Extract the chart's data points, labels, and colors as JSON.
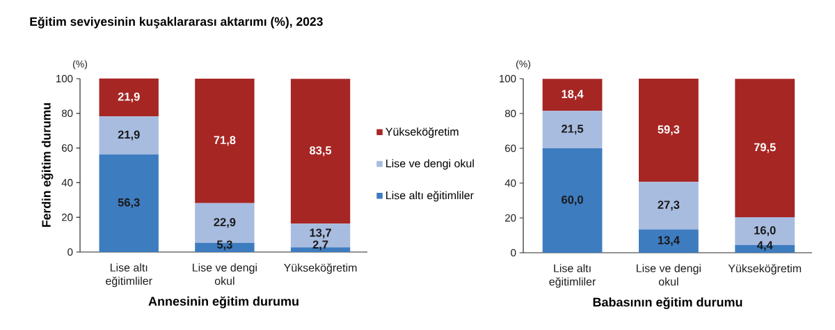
{
  "chart_data": [
    {
      "type": "bar",
      "title": "Eğitim seviyesinin kuşaklararası aktarımı (%), 2023",
      "xlabel": "Annesinin eğitim durumu",
      "ylabel": "Ferdin eğitim durumu",
      "annotations": [
        "(%)"
      ],
      "categories": [
        "Lise altı eğitimliler",
        "Lise ve dengi okul",
        "Yükseköğretim"
      ],
      "stacked": true,
      "series": [
        {
          "name": "Lise altı eğitimliler",
          "color": "#3e7cc0",
          "values": [
            56.3,
            5.3,
            2.7
          ],
          "value_labels": [
            "56,3",
            "5,3",
            "2,7"
          ]
        },
        {
          "name": "Lise ve dengi okul",
          "color": "#a8bce0",
          "values": [
            21.9,
            22.9,
            13.7
          ],
          "value_labels": [
            "21,9",
            "22,9",
            "13,7"
          ]
        },
        {
          "name": "Yükseköğretim",
          "color": "#a62624",
          "values": [
            21.9,
            71.8,
            83.5
          ],
          "value_labels": [
            "21,9",
            "71,8",
            "83,5"
          ]
        }
      ],
      "ylim": [
        0,
        100
      ],
      "yticks": [
        0,
        20,
        40,
        60,
        80,
        100
      ],
      "legend": "right"
    },
    {
      "type": "bar",
      "xlabel": "Babasının eğitim durumu",
      "annotations": [
        "(%)"
      ],
      "categories": [
        "Lise altı eğitimliler",
        "Lise ve dengi okul",
        "Yükseköğretim"
      ],
      "stacked": true,
      "series": [
        {
          "color": "#3e7cc0",
          "values": [
            60.0,
            13.4,
            4.4
          ],
          "value_labels": [
            "60,0",
            "13,4",
            "4,4"
          ]
        },
        {
          "color": "#a8bce0",
          "values": [
            21.5,
            27.3,
            16.0
          ],
          "value_labels": [
            "21,5",
            "27,3",
            "16,0"
          ]
        },
        {
          "color": "#a62624",
          "values": [
            18.4,
            59.3,
            79.5
          ],
          "value_labels": [
            "18,4",
            "59,3",
            "79,5"
          ]
        }
      ],
      "ylim": [
        0,
        100
      ],
      "yticks": [
        0,
        20,
        40,
        60,
        80,
        100
      ]
    }
  ]
}
